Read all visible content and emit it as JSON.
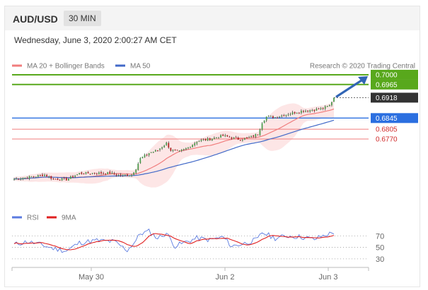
{
  "header": {
    "pair": "AUD/USD",
    "timeframe": "30 MIN"
  },
  "datetime": "Wednesday, June 3, 2020 2:00:27 AM CET",
  "legend": {
    "ma20": "MA 20 + Bollinger Bands",
    "ma50": "MA 50",
    "credit": "Research © 2020 Trading Central",
    "rsi": "RSI",
    "rsi_ma": "9MA"
  },
  "colors": {
    "ma20": "#f07d7d",
    "band": "#fde3e3",
    "ma50": "#4169c8",
    "bull": "#4e9a4e",
    "bear": "#b22222",
    "resistance": "#58a81c",
    "support": "#2b6fe0",
    "minor": "#f07d7d",
    "current": "#333333",
    "rsi": "#5b7be0",
    "rsi_ma": "#e02020",
    "arrow": "#3165b5"
  },
  "chart_data": {
    "type": "candlestick",
    "symbol": "AUD/USD",
    "interval": "30 MIN",
    "x_ticks": [
      "May 30",
      "Jun 2",
      "Jun 3"
    ],
    "ylim": [
      0.651,
      0.7015
    ],
    "levels": [
      {
        "value": 0.7,
        "label": "0.7000",
        "kind": "resistance"
      },
      {
        "value": 0.6965,
        "label": "0.6965",
        "kind": "resistance"
      },
      {
        "value": 0.6918,
        "label": "0.6918",
        "kind": "current"
      },
      {
        "value": 0.6845,
        "label": "0.6845",
        "kind": "support"
      },
      {
        "value": 0.6805,
        "label": "0.6805",
        "kind": "minor"
      },
      {
        "value": 0.677,
        "label": "0.6770",
        "kind": "minor"
      }
    ],
    "price_anchors": [
      {
        "i": 0,
        "c": 0.6627
      },
      {
        "i": 8,
        "c": 0.6635
      },
      {
        "i": 14,
        "c": 0.6642
      },
      {
        "i": 18,
        "c": 0.6627
      },
      {
        "i": 24,
        "c": 0.6625
      },
      {
        "i": 30,
        "c": 0.6647
      },
      {
        "i": 36,
        "c": 0.6648
      },
      {
        "i": 44,
        "c": 0.6648
      },
      {
        "i": 48,
        "c": 0.664
      },
      {
        "i": 54,
        "c": 0.6642
      },
      {
        "i": 56,
        "c": 0.6665
      },
      {
        "i": 58,
        "c": 0.67
      },
      {
        "i": 62,
        "c": 0.672
      },
      {
        "i": 66,
        "c": 0.673
      },
      {
        "i": 70,
        "c": 0.6755
      },
      {
        "i": 72,
        "c": 0.673
      },
      {
        "i": 76,
        "c": 0.6725
      },
      {
        "i": 80,
        "c": 0.674
      },
      {
        "i": 84,
        "c": 0.6762
      },
      {
        "i": 90,
        "c": 0.677
      },
      {
        "i": 96,
        "c": 0.6782
      },
      {
        "i": 100,
        "c": 0.6775
      },
      {
        "i": 104,
        "c": 0.6768
      },
      {
        "i": 108,
        "c": 0.6775
      },
      {
        "i": 112,
        "c": 0.6788
      },
      {
        "i": 114,
        "c": 0.683
      },
      {
        "i": 116,
        "c": 0.685
      },
      {
        "i": 120,
        "c": 0.6848
      },
      {
        "i": 126,
        "c": 0.686
      },
      {
        "i": 132,
        "c": 0.687
      },
      {
        "i": 138,
        "c": 0.6875
      },
      {
        "i": 142,
        "c": 0.688
      },
      {
        "i": 145,
        "c": 0.689
      },
      {
        "i": 147,
        "c": 0.6918
      }
    ],
    "forecast": {
      "from": 0.6918,
      "to": 0.7
    },
    "rsi": {
      "ticks": [
        70,
        50,
        30
      ],
      "ylim": [
        20,
        90
      ],
      "anchors": [
        {
          "i": 0,
          "v": 55
        },
        {
          "i": 6,
          "v": 60
        },
        {
          "i": 12,
          "v": 55
        },
        {
          "i": 18,
          "v": 48
        },
        {
          "i": 24,
          "v": 44
        },
        {
          "i": 30,
          "v": 58
        },
        {
          "i": 38,
          "v": 62
        },
        {
          "i": 46,
          "v": 60
        },
        {
          "i": 52,
          "v": 45
        },
        {
          "i": 56,
          "v": 62
        },
        {
          "i": 58,
          "v": 74
        },
        {
          "i": 62,
          "v": 78
        },
        {
          "i": 66,
          "v": 66
        },
        {
          "i": 70,
          "v": 75
        },
        {
          "i": 74,
          "v": 52
        },
        {
          "i": 78,
          "v": 58
        },
        {
          "i": 84,
          "v": 66
        },
        {
          "i": 90,
          "v": 63
        },
        {
          "i": 96,
          "v": 68
        },
        {
          "i": 100,
          "v": 52
        },
        {
          "i": 106,
          "v": 57
        },
        {
          "i": 112,
          "v": 64
        },
        {
          "i": 114,
          "v": 76
        },
        {
          "i": 120,
          "v": 66
        },
        {
          "i": 126,
          "v": 70
        },
        {
          "i": 132,
          "v": 68
        },
        {
          "i": 138,
          "v": 64
        },
        {
          "i": 142,
          "v": 70
        },
        {
          "i": 147,
          "v": 76
        }
      ]
    }
  }
}
